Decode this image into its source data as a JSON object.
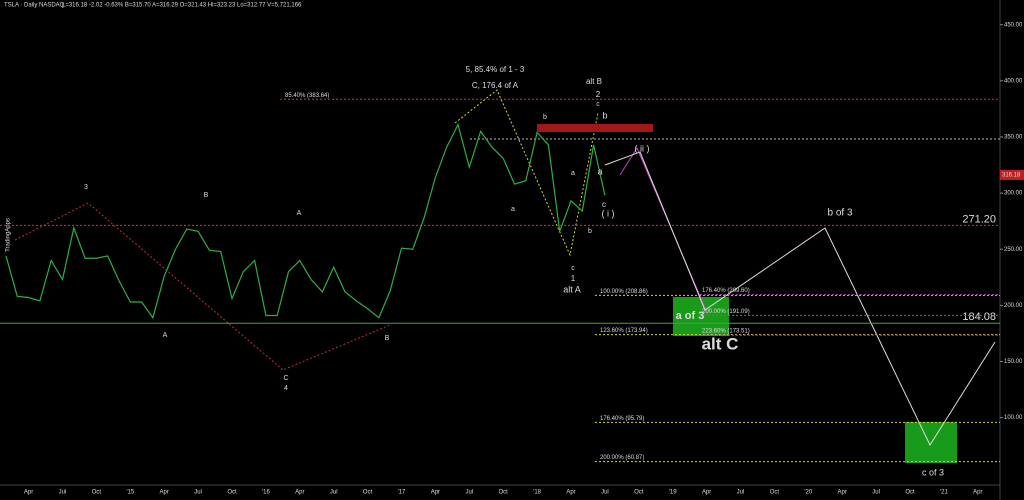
{
  "header": {
    "symbol": "TSLA · Daily  NASDAQ",
    "quote": "L=316.18  -2.02  -0.63%  B=315.70  A=316.29  O=321.43  Hi=323.23  Lo=312.77  V=5,721,166",
    "watermark": "TradingApps"
  },
  "chart_data": {
    "type": "line",
    "categories": [
      null,
      null,
      "Apr",
      null,
      null,
      "Jul",
      null,
      null,
      "Oct",
      null,
      null,
      "'15",
      null,
      null,
      "Apr",
      null,
      null,
      "Jul",
      null,
      null,
      "Oct",
      null,
      null,
      "'16",
      null,
      null,
      "Apr",
      null,
      null,
      "Jul",
      null,
      null,
      "Oct",
      null,
      null,
      "'17",
      null,
      null,
      "Apr",
      null,
      null,
      "Jul",
      null,
      null,
      "Oct",
      null,
      null,
      "'18",
      null,
      null,
      "Apr",
      null,
      null,
      "Jul",
      null,
      null,
      "Oct",
      null,
      null,
      "'19",
      null,
      null,
      "Apr",
      null,
      null,
      "Jul",
      null,
      null,
      "Oct",
      null,
      null,
      "'20",
      null,
      null,
      "Apr",
      null,
      null,
      "Jul",
      null,
      null,
      "Oct",
      null,
      null,
      "'21",
      null,
      null,
      "Apr",
      null
    ],
    "series": [
      {
        "name": "TSLA",
        "color": "#2fae46",
        "values": [
          244,
          208,
          207,
          204,
          240,
          223,
          269,
          242,
          242,
          244,
          222,
          203,
          203,
          189,
          226,
          250,
          268,
          266,
          249,
          248,
          206,
          230,
          240,
          191,
          191,
          230,
          240,
          223,
          212,
          234,
          212,
          204,
          197,
          189,
          213,
          251,
          250,
          278,
          314,
          341,
          361,
          323,
          355,
          341,
          331,
          308,
          311,
          354,
          343,
          266,
          293,
          284,
          343,
          298,
          null,
          null,
          null,
          null,
          null,
          null,
          null,
          null,
          null,
          null,
          null,
          null,
          null,
          null,
          null,
          null,
          null,
          null,
          null,
          null,
          null,
          null,
          null,
          null,
          null,
          null,
          null,
          null,
          null,
          null,
          null,
          null,
          null,
          null
        ]
      }
    ],
    "ylim": [
      40,
      472
    ],
    "yticks": [
      {
        "value": 100,
        "label": "100.00"
      },
      {
        "value": 150,
        "label": "150.00"
      },
      {
        "value": 200,
        "label": "200.00"
      },
      {
        "value": 250,
        "label": "250.00"
      },
      {
        "value": 300,
        "label": "300.00"
      },
      {
        "value": 350,
        "label": "350.00"
      },
      {
        "value": 400,
        "label": "400.00"
      },
      {
        "value": 450,
        "label": "450.00"
      }
    ],
    "last_price": {
      "value": 316.18,
      "label": "316.18"
    },
    "levels": [
      {
        "value": 383.64,
        "label": "85.40% (383.64)",
        "color": "#e03030"
      },
      {
        "value": 271.2,
        "label": "271.20",
        "color": "#e03030"
      },
      {
        "value": 184.08,
        "label": "184.08",
        "color": "#2fae46"
      },
      {
        "value": 208.86,
        "label": "100.00% (208.86)",
        "color": "#d6d630"
      },
      {
        "value": 173.94,
        "label": "123.60% (173.94)",
        "color": "#d6d630"
      },
      {
        "value": 95.79,
        "label": "176.40% (95.79)",
        "color": "#d6d630"
      },
      {
        "value": 60.87,
        "label": "200.00% (60.87)",
        "color": "#d6d630"
      },
      {
        "value": 209.6,
        "label": "176.40% (209.60)",
        "color": "#c040c0"
      },
      {
        "value": 191.09,
        "label": "200.00% (191.09)",
        "color": "#c040c0"
      },
      {
        "value": 173.51,
        "label": "223.60% (173.51)",
        "color": "#c040c0"
      }
    ],
    "annotations": [
      "5, 85.4% of 1 - 3",
      "C, 176.4 of A",
      "alt B",
      "2",
      "c",
      "b",
      "b",
      "( ii )",
      "a",
      "a",
      "a",
      "c",
      "( i )",
      "b",
      "c",
      "1",
      "alt A",
      "3",
      "B",
      "A",
      "A",
      "B",
      "C",
      "4",
      "a of 3",
      "alt C",
      "b of 3",
      "c of 3"
    ]
  }
}
